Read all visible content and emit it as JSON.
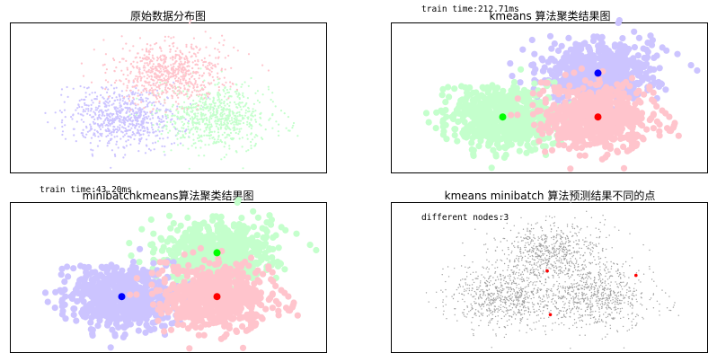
{
  "colors": {
    "light_purple": "#ccc4ff",
    "light_green": "#c4ffcc",
    "light_pink": "#ffc4cc",
    "blue": "#0000ff",
    "green": "#00ff00",
    "red": "#ff0000",
    "grey": "#a0a0a0"
  },
  "chart_data": [
    {
      "type": "scatter",
      "title": "原始数据分布图",
      "series": [
        {
          "cluster": "lower-left",
          "color": "#ccc4ff",
          "center": [
            0.35,
            0.38
          ],
          "spread": [
            0.085,
            0.1
          ],
          "count": 700
        },
        {
          "cluster": "lower-right",
          "color": "#c4ffcc",
          "center": [
            0.65,
            0.38
          ],
          "spread": [
            0.085,
            0.1
          ],
          "count": 700
        },
        {
          "cluster": "top",
          "color": "#ffc4cc",
          "center": [
            0.5,
            0.67
          ],
          "spread": [
            0.085,
            0.1
          ],
          "count": 700
        }
      ],
      "marker_size": "small",
      "axes_visible": false
    },
    {
      "type": "scatter",
      "title": "kmeans 算法聚类结果图",
      "annotation": "train time:212.71ms",
      "series": [
        {
          "cluster": "top",
          "color": "#ccc4ff",
          "center": [
            0.65,
            0.67
          ],
          "spread": [
            0.085,
            0.1
          ],
          "count": 700,
          "centroid": [
            0.65,
            0.67
          ],
          "centroid_color": "#0000ff"
        },
        {
          "cluster": "lower-left",
          "color": "#c4ffcc",
          "center": [
            0.35,
            0.38
          ],
          "spread": [
            0.085,
            0.1
          ],
          "count": 700,
          "centroid": [
            0.35,
            0.38
          ],
          "centroid_color": "#00ff00"
        },
        {
          "cluster": "lower-right",
          "color": "#ffc4cc",
          "center": [
            0.65,
            0.38
          ],
          "spread": [
            0.085,
            0.1
          ],
          "count": 700,
          "centroid": [
            0.65,
            0.38
          ],
          "centroid_color": "#ff0000"
        }
      ],
      "marker_size": "large",
      "axes_visible": false
    },
    {
      "type": "scatter",
      "title": "minibatchkmeans算法聚类结果图",
      "annotation": "train time:43.20ms",
      "series": [
        {
          "cluster": "top",
          "color": "#c4ffcc",
          "center": [
            0.65,
            0.67
          ],
          "spread": [
            0.085,
            0.1
          ],
          "count": 700,
          "centroid": [
            0.65,
            0.67
          ],
          "centroid_color": "#00ff00"
        },
        {
          "cluster": "lower-left",
          "color": "#ccc4ff",
          "center": [
            0.35,
            0.38
          ],
          "spread": [
            0.085,
            0.1
          ],
          "count": 700,
          "centroid": [
            0.35,
            0.38
          ],
          "centroid_color": "#0000ff"
        },
        {
          "cluster": "lower-right",
          "color": "#ffc4cc",
          "center": [
            0.65,
            0.38
          ],
          "spread": [
            0.085,
            0.1
          ],
          "count": 700,
          "centroid": [
            0.65,
            0.38
          ],
          "centroid_color": "#ff0000"
        }
      ],
      "marker_size": "large",
      "axes_visible": false
    },
    {
      "type": "scatter",
      "title": "kmeans minibatch 算法预测结果不同的点",
      "annotation": "different nodes:3",
      "series": [
        {
          "cluster": "all",
          "color": "#a0a0a0",
          "count": 2100
        },
        {
          "cluster": "different",
          "color": "#ff0000",
          "points": [
            [
              0.49,
              0.55
            ],
            [
              0.5,
              0.26
            ],
            [
              0.77,
              0.52
            ]
          ]
        }
      ],
      "marker_size": "tiny",
      "axes_visible": false
    }
  ]
}
